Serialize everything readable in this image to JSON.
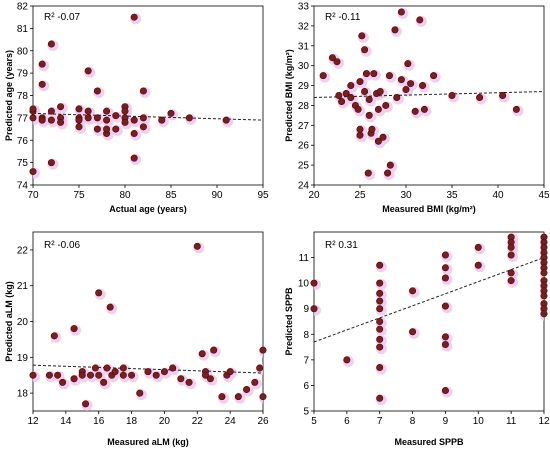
{
  "chart_data": [
    {
      "type": "scatter",
      "panel": "top-left",
      "r2": "R² -0.07",
      "xlabel": "Actual age (years)",
      "ylabel": "Predicted age (years)",
      "xlim": [
        70,
        95
      ],
      "ylim": [
        74,
        82
      ],
      "xticks": [
        70,
        75,
        80,
        85,
        90,
        95
      ],
      "yticks": [
        74,
        75,
        76,
        77,
        78,
        79,
        80,
        81,
        82
      ],
      "trendline": {
        "x": [
          70,
          95
        ],
        "y": [
          77.2,
          76.9
        ]
      },
      "points": [
        [
          70,
          77.3
        ],
        [
          70,
          77.0
        ],
        [
          70,
          77.4
        ],
        [
          70,
          74.6
        ],
        [
          71,
          79.4
        ],
        [
          71,
          78.5
        ],
        [
          71,
          77.0
        ],
        [
          71,
          76.9
        ],
        [
          72,
          80.3
        ],
        [
          72,
          77.3
        ],
        [
          72,
          76.9
        ],
        [
          72,
          75.0
        ],
        [
          73,
          77.5
        ],
        [
          73,
          77.0
        ],
        [
          73,
          76.8
        ],
        [
          75,
          77.4
        ],
        [
          75,
          77.0
        ],
        [
          75,
          76.9
        ],
        [
          75,
          76.6
        ],
        [
          76,
          79.1
        ],
        [
          76,
          77.3
        ],
        [
          76,
          77.0
        ],
        [
          77,
          78.2
        ],
        [
          77,
          77.0
        ],
        [
          77,
          76.5
        ],
        [
          78,
          77.3
        ],
        [
          78,
          76.9
        ],
        [
          78,
          76.3
        ],
        [
          78,
          76.5
        ],
        [
          79,
          77.1
        ],
        [
          79,
          76.5
        ],
        [
          80,
          77.5
        ],
        [
          80,
          77.3
        ],
        [
          80,
          77.0
        ],
        [
          80,
          76.8
        ],
        [
          81,
          81.5
        ],
        [
          81,
          76.9
        ],
        [
          81,
          76.3
        ],
        [
          81,
          75.2
        ],
        [
          82,
          78.2
        ],
        [
          82,
          77.0
        ],
        [
          82,
          76.6
        ],
        [
          84,
          76.9
        ],
        [
          85,
          77.2
        ],
        [
          87,
          77.0
        ],
        [
          91,
          76.9
        ]
      ]
    },
    {
      "type": "scatter",
      "panel": "top-right",
      "r2": "R² -0.11",
      "xlabel": "Measured BMI (kg/m²)",
      "ylabel": "Predicted BMI (kg/m²)",
      "xlim": [
        20,
        45
      ],
      "ylim": [
        24,
        33
      ],
      "xticks": [
        20,
        25,
        30,
        35,
        40,
        45
      ],
      "yticks": [
        24,
        25,
        26,
        27,
        28,
        29,
        30,
        31,
        32,
        33
      ],
      "trendline": {
        "x": [
          20,
          45
        ],
        "y": [
          28.4,
          28.7
        ]
      },
      "points": [
        [
          21.0,
          29.5
        ],
        [
          22.0,
          30.4
        ],
        [
          22.5,
          30.2
        ],
        [
          22.7,
          28.5
        ],
        [
          23.0,
          28.2
        ],
        [
          23.5,
          28.6
        ],
        [
          24.0,
          29.0
        ],
        [
          24.0,
          28.4
        ],
        [
          24.5,
          28.0
        ],
        [
          24.8,
          27.8
        ],
        [
          25.0,
          29.2
        ],
        [
          25.0,
          26.5
        ],
        [
          25.0,
          26.8
        ],
        [
          25.2,
          31.5
        ],
        [
          25.5,
          30.8
        ],
        [
          25.5,
          28.7
        ],
        [
          25.7,
          29.6
        ],
        [
          25.9,
          24.6
        ],
        [
          26.0,
          28.3
        ],
        [
          26.0,
          27.5
        ],
        [
          26.2,
          26.6
        ],
        [
          26.3,
          26.8
        ],
        [
          26.5,
          29.6
        ],
        [
          26.8,
          28.6
        ],
        [
          27.0,
          26.2
        ],
        [
          27.0,
          27.8
        ],
        [
          27.2,
          28.7
        ],
        [
          27.5,
          26.4
        ],
        [
          27.8,
          28.0
        ],
        [
          28.0,
          24.6
        ],
        [
          28.2,
          29.5
        ],
        [
          28.3,
          25.0
        ],
        [
          28.8,
          31.8
        ],
        [
          29.0,
          28.4
        ],
        [
          29.5,
          32.7
        ],
        [
          29.5,
          29.3
        ],
        [
          30.0,
          28.8
        ],
        [
          30.2,
          30.1
        ],
        [
          30.5,
          29.1
        ],
        [
          31.0,
          27.7
        ],
        [
          31.5,
          32.3
        ],
        [
          31.8,
          29.0
        ],
        [
          32.0,
          27.8
        ],
        [
          33.0,
          29.5
        ],
        [
          35.0,
          28.5
        ],
        [
          38.0,
          28.4
        ],
        [
          40.5,
          28.5
        ],
        [
          42.0,
          27.8
        ]
      ]
    },
    {
      "type": "scatter",
      "panel": "bottom-left",
      "r2": "R² -0.06",
      "xlabel": "Measured aLM (kg)",
      "ylabel": "Predicted aLM (kg)",
      "xlim": [
        12,
        26
      ],
      "ylim": [
        17.5,
        22.5
      ],
      "xticks": [
        12,
        14,
        16,
        18,
        20,
        22,
        24,
        26
      ],
      "yticks": [
        18,
        19,
        20,
        21,
        22
      ],
      "trendline": {
        "x": [
          12,
          26
        ],
        "y": [
          18.78,
          18.56
        ]
      },
      "points": [
        [
          12.0,
          18.5
        ],
        [
          13.0,
          18.5
        ],
        [
          13.3,
          19.6
        ],
        [
          13.5,
          18.5
        ],
        [
          13.8,
          18.3
        ],
        [
          14.5,
          19.8
        ],
        [
          14.5,
          18.4
        ],
        [
          15.0,
          18.6
        ],
        [
          15.0,
          18.5
        ],
        [
          15.2,
          17.7
        ],
        [
          15.5,
          18.5
        ],
        [
          15.8,
          18.7
        ],
        [
          16.0,
          20.8
        ],
        [
          16.0,
          18.5
        ],
        [
          16.3,
          18.3
        ],
        [
          16.5,
          18.7
        ],
        [
          16.7,
          20.4
        ],
        [
          16.8,
          18.5
        ],
        [
          17.0,
          18.6
        ],
        [
          17.5,
          18.7
        ],
        [
          17.5,
          18.5
        ],
        [
          18.0,
          18.5
        ],
        [
          18.5,
          18.0
        ],
        [
          19.0,
          18.6
        ],
        [
          19.5,
          18.5
        ],
        [
          20.0,
          18.6
        ],
        [
          20.5,
          18.7
        ],
        [
          21.0,
          18.4
        ],
        [
          21.5,
          18.3
        ],
        [
          22.0,
          22.1
        ],
        [
          22.3,
          19.1
        ],
        [
          22.5,
          18.6
        ],
        [
          22.5,
          18.5
        ],
        [
          22.8,
          18.4
        ],
        [
          23.0,
          19.2
        ],
        [
          23.5,
          17.9
        ],
        [
          23.8,
          18.5
        ],
        [
          24.0,
          18.6
        ],
        [
          24.5,
          17.9
        ],
        [
          25.0,
          18.1
        ],
        [
          25.5,
          18.3
        ],
        [
          25.8,
          18.7
        ],
        [
          26.0,
          19.2
        ],
        [
          26.0,
          17.9
        ]
      ]
    },
    {
      "type": "scatter",
      "panel": "bottom-right",
      "r2": "R² 0.31",
      "xlabel": "Measured SPPB",
      "ylabel": "Predicted SPPB",
      "xlim": [
        5,
        12
      ],
      "ylim": [
        5,
        12
      ],
      "xticks": [
        5,
        6,
        7,
        8,
        9,
        10,
        11,
        12
      ],
      "yticks": [
        5,
        6,
        7,
        8,
        9,
        10,
        11
      ],
      "trendline": {
        "x": [
          5,
          12
        ],
        "y": [
          7.7,
          11.0
        ]
      },
      "points": [
        [
          5,
          10.0
        ],
        [
          5,
          9.0
        ],
        [
          6,
          7.0
        ],
        [
          7,
          10.7
        ],
        [
          7,
          10.0
        ],
        [
          7,
          9.6
        ],
        [
          7,
          9.3
        ],
        [
          7,
          9.0
        ],
        [
          7,
          8.5
        ],
        [
          7,
          8.2
        ],
        [
          7,
          7.8
        ],
        [
          7,
          7.5
        ],
        [
          7,
          6.7
        ],
        [
          7,
          5.5
        ],
        [
          8,
          9.7
        ],
        [
          8,
          8.1
        ],
        [
          9,
          11.1
        ],
        [
          9,
          10.6
        ],
        [
          9,
          10.2
        ],
        [
          9,
          9.1
        ],
        [
          9,
          7.9
        ],
        [
          9,
          7.6
        ],
        [
          9,
          5.8
        ],
        [
          10,
          11.4
        ],
        [
          10,
          10.7
        ],
        [
          11,
          11.8
        ],
        [
          11,
          11.6
        ],
        [
          11,
          11.4
        ],
        [
          11,
          11.1
        ],
        [
          11,
          10.4
        ],
        [
          11,
          10.1
        ],
        [
          12,
          11.8
        ],
        [
          12,
          11.6
        ],
        [
          12,
          11.4
        ],
        [
          12,
          11.2
        ],
        [
          12,
          11.0
        ],
        [
          12,
          10.8
        ],
        [
          12,
          10.6
        ],
        [
          12,
          10.4
        ],
        [
          12,
          10.1
        ],
        [
          12,
          9.9
        ],
        [
          12,
          9.7
        ],
        [
          12,
          9.5
        ],
        [
          12,
          9.2
        ],
        [
          12,
          9.0
        ],
        [
          12,
          8.8
        ]
      ]
    }
  ],
  "colors": {
    "point_fill": "#7a1f1f",
    "point_edge": "#3d0e0e",
    "halo": "#f5c8ee",
    "trendline": "#222222",
    "axis": "#000000"
  }
}
